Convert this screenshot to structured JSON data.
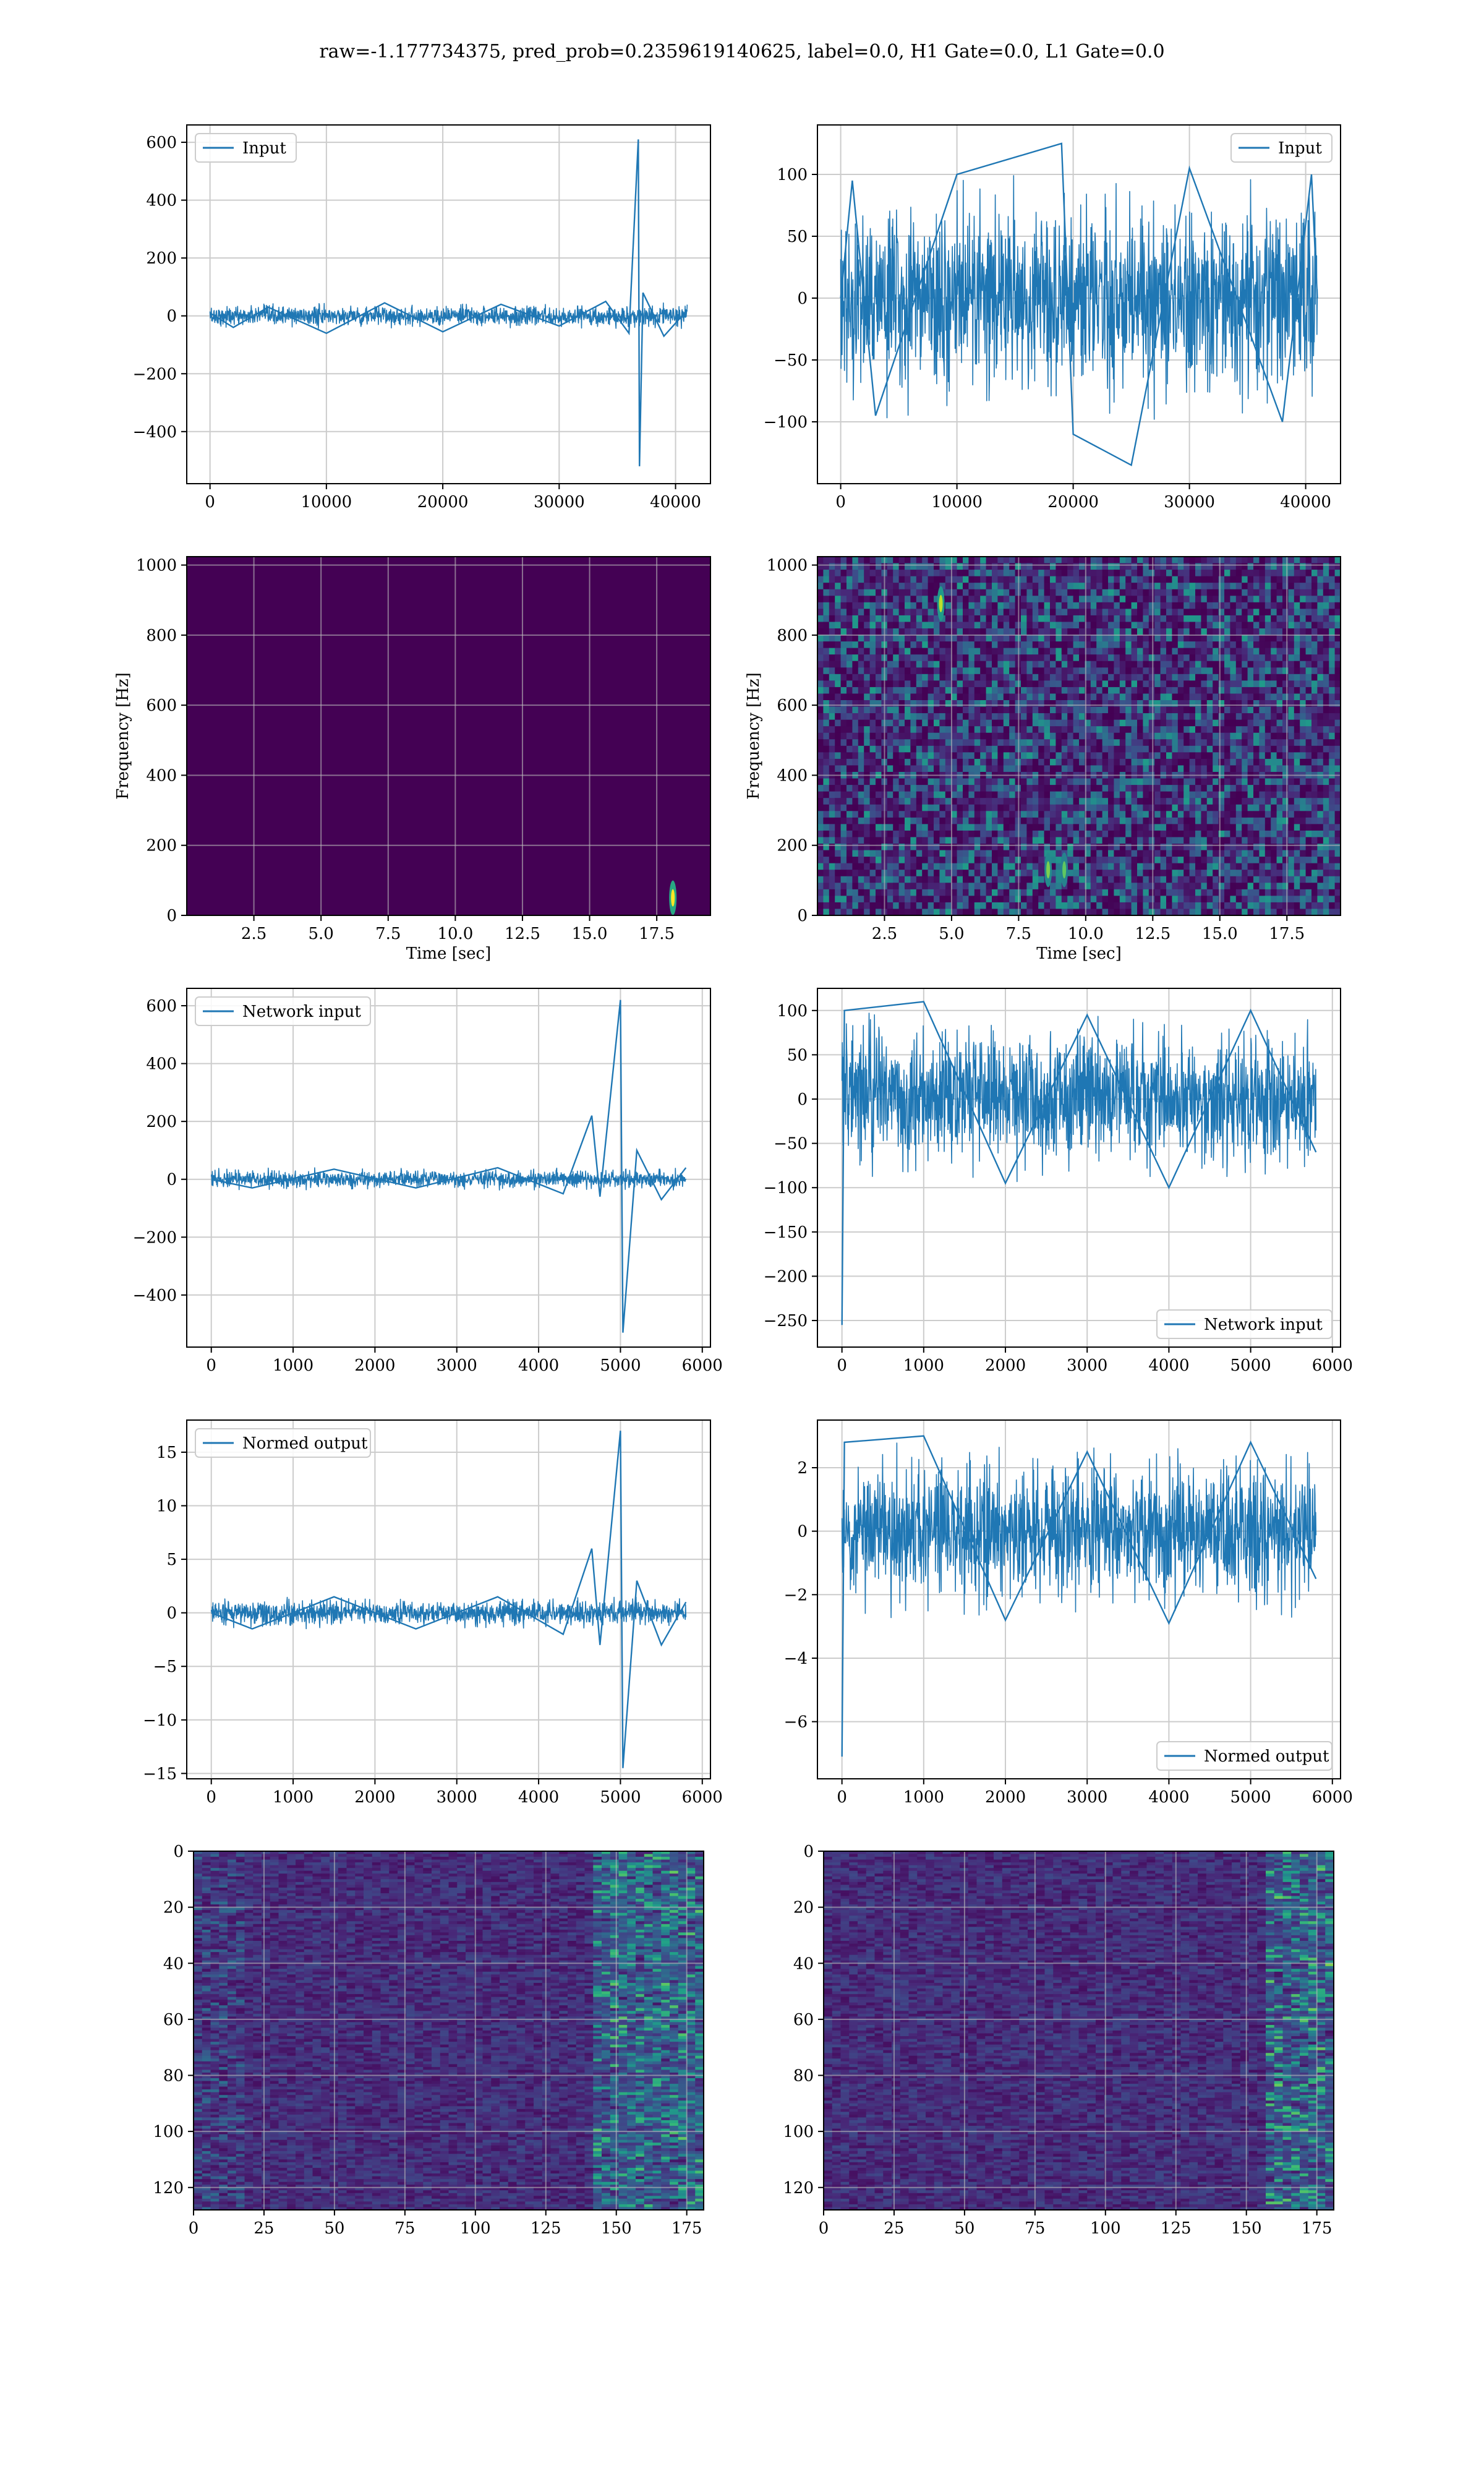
{
  "figure": {
    "title": "raw=-1.177734375, pred_prob=0.2359619140625, label=0.0, H1 Gate=0.0, L1 Gate=0.0"
  },
  "colors": {
    "line": "#1f77b4",
    "viridis_low": "#440154",
    "grid": "#cccccc"
  },
  "chart_data": [
    {
      "id": "p00",
      "type": "line",
      "series": [
        {
          "name": "Input",
          "points": [
            [
              0,
              10
            ],
            [
              2000,
              -40
            ],
            [
              5000,
              30
            ],
            [
              10000,
              -60
            ],
            [
              15000,
              45
            ],
            [
              20000,
              -55
            ],
            [
              25000,
              40
            ],
            [
              30000,
              -35
            ],
            [
              34000,
              50
            ],
            [
              36000,
              -60
            ],
            [
              36800,
              610
            ],
            [
              36900,
              -520
            ],
            [
              37200,
              80
            ],
            [
              39000,
              -70
            ],
            [
              41000,
              20
            ]
          ]
        }
      ],
      "xlim": [
        -2000,
        43000
      ],
      "ylim": [
        -580,
        660
      ],
      "xticks": [
        0,
        10000,
        20000,
        30000,
        40000
      ],
      "xticklabels": [
        "0",
        "10000",
        "20000",
        "30000",
        "40000"
      ],
      "yticks": [
        -400,
        -200,
        0,
        200,
        400,
        600
      ],
      "yticklabels": [
        "−400",
        "−200",
        "0",
        "200",
        "400",
        "600"
      ],
      "legend": "upper left",
      "grid": true,
      "xlabel": "",
      "ylabel": ""
    },
    {
      "id": "p01",
      "type": "line",
      "series": [
        {
          "name": "Input",
          "points": [
            [
              0,
              0
            ],
            [
              1000,
              95
            ],
            [
              3000,
              -95
            ],
            [
              10000,
              100
            ],
            [
              19000,
              125
            ],
            [
              20000,
              -110
            ],
            [
              25000,
              -135
            ],
            [
              30000,
              105
            ],
            [
              38000,
              -100
            ],
            [
              40500,
              100
            ],
            [
              41000,
              0
            ]
          ]
        }
      ],
      "xlim": [
        -2000,
        43000
      ],
      "ylim": [
        -150,
        140
      ],
      "xticks": [
        0,
        10000,
        20000,
        30000,
        40000
      ],
      "xticklabels": [
        "0",
        "10000",
        "20000",
        "30000",
        "40000"
      ],
      "yticks": [
        -100,
        -50,
        0,
        50,
        100
      ],
      "yticklabels": [
        "−100",
        "−50",
        "0",
        "50",
        "100"
      ],
      "legend": "upper right",
      "grid": true,
      "xlabel": "",
      "ylabel": ""
    },
    {
      "id": "p10",
      "type": "heatmap",
      "xlim": [
        0,
        19.5
      ],
      "ylim": [
        0,
        1024
      ],
      "xticks": [
        2.5,
        5,
        7.5,
        10,
        12.5,
        15,
        17.5
      ],
      "xticklabels": [
        "2.5",
        "5.0",
        "7.5",
        "10.0",
        "12.5",
        "15.0",
        "17.5"
      ],
      "yticks": [
        0,
        200,
        400,
        600,
        800,
        1000
      ],
      "yticklabels": [
        "0",
        "200",
        "400",
        "600",
        "800",
        "1000"
      ],
      "xlabel": "Time [sec]",
      "ylabel": "Frequency [Hz]",
      "hotspots": [
        {
          "t": 18.1,
          "f": 50,
          "level": 1.0
        }
      ]
    },
    {
      "id": "p11",
      "type": "heatmap",
      "xlim": [
        0,
        19.5
      ],
      "ylim": [
        0,
        1024
      ],
      "xticks": [
        2.5,
        5,
        7.5,
        10,
        12.5,
        15,
        17.5
      ],
      "xticklabels": [
        "2.5",
        "5.0",
        "7.5",
        "10.0",
        "12.5",
        "15.0",
        "17.5"
      ],
      "yticks": [
        0,
        200,
        400,
        600,
        800,
        1000
      ],
      "yticklabels": [
        "0",
        "200",
        "400",
        "600",
        "800",
        "1000"
      ],
      "xlabel": "Time [sec]",
      "ylabel": "Frequency [Hz]",
      "hotspots": [
        {
          "t": 4.6,
          "f": 890,
          "level": 0.9
        },
        {
          "t": 8.6,
          "f": 130,
          "level": 0.8
        },
        {
          "t": 9.2,
          "f": 130,
          "level": 0.75
        }
      ]
    },
    {
      "id": "p20",
      "type": "line",
      "series": [
        {
          "name": "Network input",
          "points": [
            [
              0,
              0
            ],
            [
              500,
              -30
            ],
            [
              1500,
              35
            ],
            [
              2500,
              -30
            ],
            [
              3500,
              40
            ],
            [
              4300,
              -50
            ],
            [
              4650,
              220
            ],
            [
              4750,
              -60
            ],
            [
              5000,
              620
            ],
            [
              5030,
              -530
            ],
            [
              5200,
              100
            ],
            [
              5500,
              -70
            ],
            [
              5800,
              40
            ]
          ]
        }
      ],
      "xlim": [
        -300,
        6100
      ],
      "ylim": [
        -580,
        660
      ],
      "xticks": [
        0,
        1000,
        2000,
        3000,
        4000,
        5000,
        6000
      ],
      "xticklabels": [
        "0",
        "1000",
        "2000",
        "3000",
        "4000",
        "5000",
        "6000"
      ],
      "yticks": [
        -400,
        -200,
        0,
        200,
        400,
        600
      ],
      "yticklabels": [
        "−400",
        "−200",
        "0",
        "200",
        "400",
        "600"
      ],
      "legend": "upper left",
      "grid": true,
      "xlabel": "",
      "ylabel": ""
    },
    {
      "id": "p21",
      "type": "line",
      "series": [
        {
          "name": "Network input",
          "points": [
            [
              0,
              -255
            ],
            [
              30,
              100
            ],
            [
              1000,
              110
            ],
            [
              2000,
              -95
            ],
            [
              3000,
              95
            ],
            [
              4000,
              -100
            ],
            [
              5000,
              100
            ],
            [
              5800,
              -60
            ]
          ]
        }
      ],
      "xlim": [
        -300,
        6100
      ],
      "ylim": [
        -280,
        125
      ],
      "xticks": [
        0,
        1000,
        2000,
        3000,
        4000,
        5000,
        6000
      ],
      "xticklabels": [
        "0",
        "1000",
        "2000",
        "3000",
        "4000",
        "5000",
        "6000"
      ],
      "yticks": [
        -250,
        -200,
        -150,
        -100,
        -50,
        0,
        50,
        100
      ],
      "yticklabels": [
        "−250",
        "−200",
        "−150",
        "−100",
        "−50",
        "0",
        "50",
        "100"
      ],
      "legend": "lower right",
      "grid": true,
      "xlabel": "",
      "ylabel": ""
    },
    {
      "id": "p30",
      "type": "line",
      "series": [
        {
          "name": "Normed output",
          "points": [
            [
              0,
              0
            ],
            [
              500,
              -1.5
            ],
            [
              1500,
              1.5
            ],
            [
              2500,
              -1.5
            ],
            [
              3500,
              1.5
            ],
            [
              4300,
              -2
            ],
            [
              4650,
              6
            ],
            [
              4750,
              -3
            ],
            [
              5000,
              17
            ],
            [
              5030,
              -14.5
            ],
            [
              5200,
              3
            ],
            [
              5500,
              -3
            ],
            [
              5800,
              1
            ]
          ]
        }
      ],
      "xlim": [
        -300,
        6100
      ],
      "ylim": [
        -15.5,
        18
      ],
      "xticks": [
        0,
        1000,
        2000,
        3000,
        4000,
        5000,
        6000
      ],
      "xticklabels": [
        "0",
        "1000",
        "2000",
        "3000",
        "4000",
        "5000",
        "6000"
      ],
      "yticks": [
        -15,
        -10,
        -5,
        0,
        5,
        10,
        15
      ],
      "yticklabels": [
        "−15",
        "−10",
        "−5",
        "0",
        "5",
        "10",
        "15"
      ],
      "legend": "upper left",
      "grid": true,
      "xlabel": "",
      "ylabel": ""
    },
    {
      "id": "p31",
      "type": "line",
      "series": [
        {
          "name": "Normed output",
          "points": [
            [
              0,
              -7.1
            ],
            [
              30,
              2.8
            ],
            [
              1000,
              3
            ],
            [
              2000,
              -2.8
            ],
            [
              3000,
              2.5
            ],
            [
              4000,
              -2.9
            ],
            [
              5000,
              2.8
            ],
            [
              5800,
              -1.5
            ]
          ]
        }
      ],
      "xlim": [
        -300,
        6100
      ],
      "ylim": [
        -7.8,
        3.5
      ],
      "xticks": [
        0,
        1000,
        2000,
        3000,
        4000,
        5000,
        6000
      ],
      "xticklabels": [
        "0",
        "1000",
        "2000",
        "3000",
        "4000",
        "5000",
        "6000"
      ],
      "yticks": [
        -6,
        -4,
        -2,
        0,
        2
      ],
      "yticklabels": [
        "−6",
        "−4",
        "−2",
        "0",
        "2"
      ],
      "legend": "lower right",
      "grid": true,
      "xlabel": "",
      "ylabel": ""
    },
    {
      "id": "p40",
      "type": "heatmap",
      "xlim": [
        0,
        181
      ],
      "ylim": [
        128,
        0
      ],
      "xticks": [
        0,
        25,
        50,
        75,
        100,
        125,
        150,
        175
      ],
      "xticklabels": [
        "0",
        "25",
        "50",
        "75",
        "100",
        "125",
        "150",
        "175"
      ],
      "yticks": [
        0,
        20,
        40,
        60,
        80,
        100,
        120
      ],
      "yticklabels": [
        "0",
        "20",
        "40",
        "60",
        "80",
        "100",
        "120"
      ],
      "xlabel": "",
      "ylabel": ""
    },
    {
      "id": "p41",
      "type": "heatmap",
      "xlim": [
        0,
        181
      ],
      "ylim": [
        128,
        0
      ],
      "xticks": [
        0,
        25,
        50,
        75,
        100,
        125,
        150,
        175
      ],
      "xticklabels": [
        "0",
        "25",
        "50",
        "75",
        "100",
        "125",
        "150",
        "175"
      ],
      "yticks": [
        0,
        20,
        40,
        60,
        80,
        100,
        120
      ],
      "yticklabels": [
        "0",
        "20",
        "40",
        "60",
        "80",
        "100",
        "120"
      ],
      "xlabel": "",
      "ylabel": ""
    }
  ]
}
